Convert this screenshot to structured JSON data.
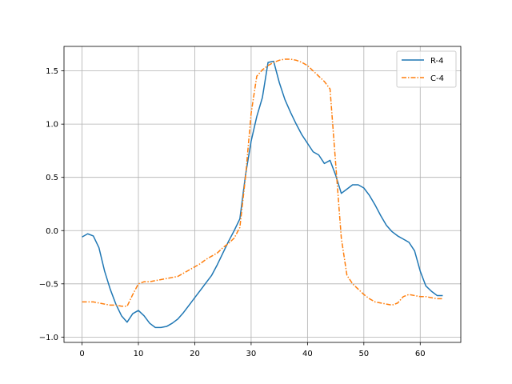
{
  "chart_data": {
    "type": "line",
    "title": "",
    "xlabel": "",
    "ylabel": "",
    "xlim": [
      -3.2,
      67.2
    ],
    "ylim": [
      -1.05,
      1.73
    ],
    "xticks": [
      0,
      10,
      20,
      30,
      40,
      50,
      60
    ],
    "yticks": [
      -1.0,
      -0.5,
      0.0,
      0.5,
      1.0,
      1.5
    ],
    "xtick_labels": [
      "0",
      "10",
      "20",
      "30",
      "40",
      "50",
      "60"
    ],
    "ytick_labels": [
      "−1.0",
      "−0.5",
      "0.0",
      "0.5",
      "1.0",
      "1.5"
    ],
    "grid": true,
    "legend_position": "top-right",
    "series": [
      {
        "name": "R-4",
        "color": "#1f77b4",
        "dash": "solid",
        "x": [
          0,
          1,
          2,
          3,
          4,
          5,
          6,
          7,
          8,
          9,
          10,
          11,
          12,
          13,
          14,
          15,
          16,
          17,
          18,
          19,
          20,
          21,
          22,
          23,
          24,
          25,
          26,
          27,
          28,
          29,
          30,
          31,
          32,
          33,
          34,
          35,
          36,
          37,
          38,
          39,
          40,
          41,
          42,
          43,
          44,
          45,
          46,
          47,
          48,
          49,
          50,
          51,
          52,
          53,
          54,
          55,
          56,
          57,
          58,
          59,
          60,
          61,
          62,
          63,
          64
        ],
        "values": [
          -0.06,
          -0.03,
          -0.05,
          -0.16,
          -0.38,
          -0.55,
          -0.69,
          -0.8,
          -0.86,
          -0.78,
          -0.75,
          -0.8,
          -0.87,
          -0.91,
          -0.91,
          -0.9,
          -0.87,
          -0.83,
          -0.77,
          -0.7,
          -0.63,
          -0.56,
          -0.49,
          -0.42,
          -0.32,
          -0.21,
          -0.1,
          0.0,
          0.11,
          0.52,
          0.84,
          1.07,
          1.25,
          1.58,
          1.59,
          1.39,
          1.23,
          1.11,
          1.0,
          0.9,
          0.82,
          0.74,
          0.71,
          0.63,
          0.66,
          0.52,
          0.35,
          0.39,
          0.43,
          0.43,
          0.4,
          0.33,
          0.24,
          0.14,
          0.05,
          -0.01,
          -0.05,
          -0.08,
          -0.11,
          -0.19,
          -0.38,
          -0.52,
          -0.57,
          -0.61,
          -0.61
        ]
      },
      {
        "name": "C-4",
        "color": "#ff7f0e",
        "dash": "dashdot",
        "x": [
          0,
          1,
          2,
          3,
          4,
          5,
          6,
          7,
          8,
          9,
          10,
          11,
          12,
          13,
          14,
          15,
          16,
          17,
          18,
          19,
          20,
          21,
          22,
          23,
          24,
          25,
          26,
          27,
          28,
          29,
          30,
          31,
          32,
          33,
          34,
          35,
          36,
          37,
          38,
          39,
          40,
          41,
          42,
          43,
          44,
          45,
          46,
          47,
          48,
          49,
          50,
          51,
          52,
          53,
          54,
          55,
          56,
          57,
          58,
          59,
          60,
          61,
          62,
          63,
          64
        ],
        "values": [
          -0.67,
          -0.67,
          -0.67,
          -0.68,
          -0.69,
          -0.7,
          -0.7,
          -0.71,
          -0.71,
          -0.6,
          -0.5,
          -0.48,
          -0.48,
          -0.47,
          -0.46,
          -0.45,
          -0.44,
          -0.43,
          -0.4,
          -0.37,
          -0.34,
          -0.31,
          -0.27,
          -0.24,
          -0.21,
          -0.16,
          -0.12,
          -0.07,
          0.03,
          0.5,
          1.1,
          1.45,
          1.51,
          1.55,
          1.58,
          1.6,
          1.61,
          1.61,
          1.6,
          1.58,
          1.55,
          1.5,
          1.45,
          1.4,
          1.33,
          0.63,
          -0.07,
          -0.42,
          -0.5,
          -0.55,
          -0.6,
          -0.64,
          -0.67,
          -0.68,
          -0.69,
          -0.7,
          -0.68,
          -0.62,
          -0.6,
          -0.61,
          -0.62,
          -0.62,
          -0.63,
          -0.64,
          -0.64
        ]
      }
    ]
  }
}
